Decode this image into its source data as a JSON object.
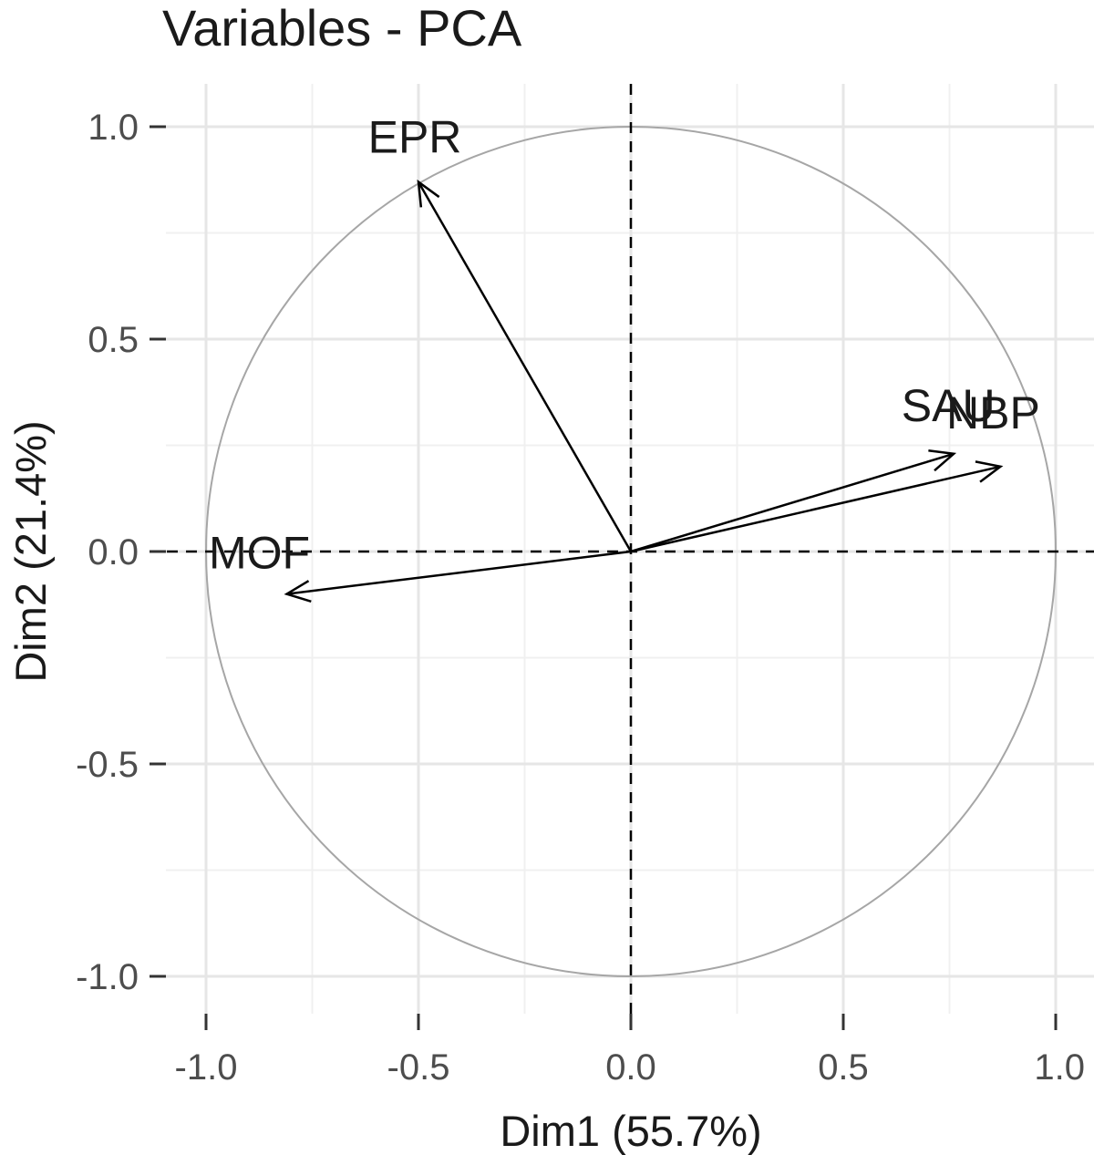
{
  "chart_data": {
    "type": "scatter",
    "subtype": "pca-variable-correlation-circle",
    "title": "Variables - PCA",
    "xlabel": "Dim1 (55.7%)",
    "ylabel": "Dim2 (21.4%)",
    "xlim": [
      -1.0,
      1.0
    ],
    "ylim": [
      -1.0,
      1.0
    ],
    "x_ticks": [
      -1.0,
      -0.5,
      0.0,
      0.5,
      1.0
    ],
    "y_ticks": [
      -1.0,
      -0.5,
      0.0,
      0.5,
      1.0
    ],
    "x_tick_labels": [
      "-1.0",
      "-0.5",
      "0.0",
      "0.5",
      "1.0"
    ],
    "y_tick_labels": [
      "-1.0",
      "-0.5",
      "0.0",
      "0.5",
      "1.0"
    ],
    "grid": true,
    "unit_circle": true,
    "variables": [
      {
        "name": "EPR",
        "x": -0.5,
        "y": 0.87
      },
      {
        "name": "SAU",
        "x": 0.76,
        "y": 0.23
      },
      {
        "name": "NBP",
        "x": 0.87,
        "y": 0.2
      },
      {
        "name": "MOF",
        "x": -0.81,
        "y": -0.1
      }
    ],
    "colors": {
      "arrow": "#000000",
      "circle": "#a6a6a6",
      "grid": "#e6e6e6"
    }
  }
}
